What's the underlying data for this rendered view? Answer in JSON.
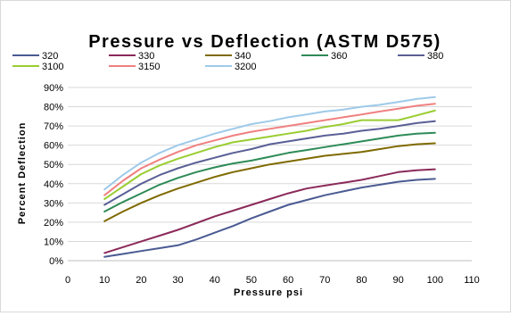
{
  "chart_data": {
    "type": "line",
    "title": "Pressure vs Deflection (ASTM D575)",
    "xlabel": "Pressure psi",
    "ylabel": "Percent Deflection",
    "xlim": [
      0,
      110
    ],
    "ylim": [
      0,
      90
    ],
    "x_ticks": [
      "0",
      "10",
      "20",
      "30",
      "40",
      "50",
      "60",
      "70",
      "80",
      "90",
      "100",
      "110"
    ],
    "y_ticks": [
      "0%",
      "10%",
      "20%",
      "30%",
      "40%",
      "50%",
      "60%",
      "70%",
      "80%",
      "90%"
    ],
    "grid": "horizontal",
    "legend_position": "top",
    "x": [
      10,
      15,
      20,
      25,
      30,
      35,
      40,
      45,
      50,
      55,
      60,
      65,
      70,
      75,
      80,
      85,
      90,
      95,
      100
    ],
    "series": [
      {
        "name": "320",
        "color": "#4a5a92",
        "values": [
          2,
          3.5,
          5,
          6.5,
          8,
          11,
          14.5,
          18,
          22,
          25.5,
          29,
          31.5,
          34,
          36,
          38,
          39.5,
          41,
          42,
          42.5
        ]
      },
      {
        "name": "330",
        "color": "#8b2a5a",
        "values": [
          4,
          7,
          10,
          13,
          16,
          19.5,
          23,
          26,
          29,
          32,
          35,
          37.5,
          39,
          40.5,
          42,
          44,
          46,
          47,
          47.5
        ]
      },
      {
        "name": "340",
        "color": "#7f6a00",
        "values": [
          20.5,
          25.5,
          30,
          34,
          37.5,
          40.5,
          43.5,
          46,
          48,
          50,
          51.5,
          53,
          54.5,
          55.5,
          56.5,
          58,
          59.5,
          60.5,
          61
        ]
      },
      {
        "name": "360",
        "color": "#2e8b57",
        "values": [
          25.5,
          30.5,
          35,
          39.5,
          43,
          46,
          48.5,
          50.5,
          52,
          54,
          56,
          57.5,
          59,
          60.5,
          62,
          63.5,
          65,
          66,
          66.5
        ]
      },
      {
        "name": "380",
        "color": "#5a5f96",
        "values": [
          29,
          34.5,
          40,
          44.5,
          48,
          51,
          53.5,
          56,
          58,
          60.5,
          62,
          63.5,
          65,
          66,
          67.5,
          68.5,
          70,
          71.5,
          72.5
        ]
      },
      {
        "name": "3100",
        "color": "#9acd32",
        "values": [
          32,
          38.5,
          45,
          49.5,
          53,
          56,
          59,
          61.5,
          63,
          64.5,
          66,
          67.5,
          69.5,
          71,
          73,
          73,
          73,
          75.5,
          78
        ]
      },
      {
        "name": "3150",
        "color": "#f08080",
        "values": [
          34,
          41.5,
          48,
          52.5,
          56.5,
          60,
          62.5,
          65,
          67,
          68.5,
          70,
          71.5,
          73,
          74.5,
          76,
          77.5,
          79,
          80.5,
          81.5
        ]
      },
      {
        "name": "3200",
        "color": "#9ecae9",
        "values": [
          37,
          44.5,
          51,
          56,
          60,
          63,
          66,
          68.5,
          71,
          72.5,
          74.5,
          76,
          77.5,
          78.5,
          80,
          81,
          82.5,
          84,
          85
        ]
      }
    ]
  }
}
